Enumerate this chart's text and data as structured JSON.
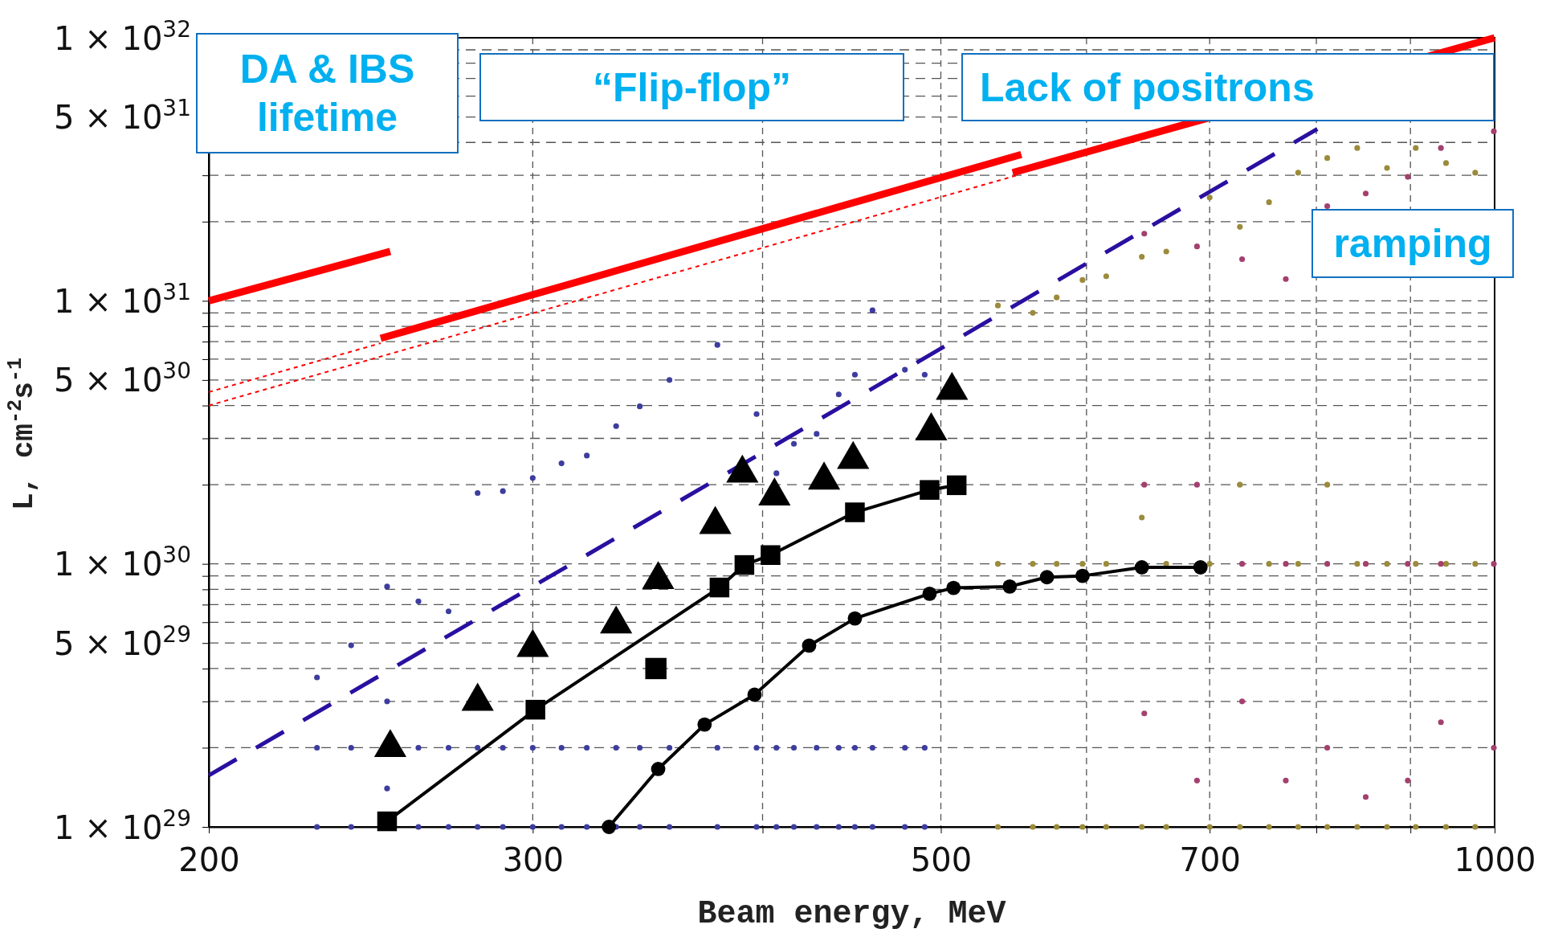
{
  "chart_data": {
    "type": "line",
    "xlabel": "Beam energy, MeV",
    "ylabel": "L, cm$^{-2}$s$^{-1}$",
    "log": "xy",
    "grid": true,
    "xlim": [
      200,
      1000
    ],
    "ylim": [
      1e+29,
      1e+32
    ],
    "xticks": [
      200,
      300,
      {
        "value": 400,
        "label": null
      },
      500,
      {
        "value": 600,
        "label": null
      },
      700,
      {
        "value": 800,
        "label": null
      },
      {
        "value": 900,
        "label": null
      },
      1000
    ],
    "yticks": [
      {
        "value": 1e+29,
        "label": "1 × 10$^{29}$"
      },
      {
        "value": 2e+29,
        "label": null
      },
      {
        "value": 3e+29,
        "label": null
      },
      {
        "value": 4e+29,
        "label": null
      },
      {
        "value": 5e+29,
        "label": "5 × 10$^{29}$"
      },
      {
        "value": 6e+29,
        "label": null
      },
      {
        "value": 7e+29,
        "label": null
      },
      {
        "value": 8e+29,
        "label": null
      },
      {
        "value": 9e+29,
        "label": null
      },
      {
        "value": 1e+30,
        "label": "1 × 10$^{30}$"
      },
      {
        "value": 2e+30,
        "label": null
      },
      {
        "value": 3e+30,
        "label": null
      },
      {
        "value": 4e+30,
        "label": null
      },
      {
        "value": 5e+30,
        "label": "5 × 10$^{30}$"
      },
      {
        "value": 6e+30,
        "label": null
      },
      {
        "value": 7e+30,
        "label": null
      },
      {
        "value": 8e+30,
        "label": null
      },
      {
        "value": 9e+30,
        "label": null
      },
      {
        "value": 1e+31,
        "label": "1 × 10$^{31}$"
      },
      {
        "value": 2e+31,
        "label": null
      },
      {
        "value": 3e+31,
        "label": null
      },
      {
        "value": 4e+31,
        "label": null
      },
      {
        "value": 5e+31,
        "label": "5 × 10$^{31}$"
      },
      {
        "value": 6e+31,
        "label": null
      },
      {
        "value": 7e+31,
        "label": null
      },
      {
        "value": 8e+31,
        "label": null
      },
      {
        "value": 9e+31,
        "label": null
      },
      {
        "value": 1e+32,
        "label": "1 × 10$^{32}$"
      }
    ],
    "annotations": [
      "DA & IBS\nlifetime",
      "“Flip-flop”",
      "Lack of positrons",
      "ramping"
    ],
    "series": [
      {
        "type": "scatter",
        "color": "#9b8b3b",
        "marker": "circle",
        "x": [
          537,
          537,
          537,
          561,
          561,
          561,
          578,
          578,
          578,
          597,
          597,
          597,
          615,
          615,
          615,
          643,
          643,
          643,
          663,
          663,
          663,
          700,
          700,
          700,
          727,
          727,
          727,
          754,
          754,
          754,
          782,
          782,
          782,
          811,
          811,
          811,
          842,
          842,
          842,
          874,
          874,
          874,
          906,
          906,
          906,
          941,
          941,
          941,
          976,
          976,
          976
        ],
        "values": [
          9.6e+30,
          1e+30,
          1e+29,
          9e+30,
          1e+30,
          1e+29,
          1.03e+31,
          1e+30,
          1e+29,
          1.2e+31,
          1e+30,
          1e+29,
          1.24e+31,
          1e+30,
          1e+29,
          1.47e+31,
          1.5e+30,
          1e+29,
          1.54e+31,
          1e+30,
          1e+29,
          2.47e+31,
          1e+30,
          1e+29,
          1.91e+31,
          2e+30,
          1e+29,
          2.37e+31,
          1e+30,
          1e+29,
          3.07e+31,
          1e+30,
          1e+29,
          3.49e+31,
          2e+30,
          1e+29,
          3.81e+31,
          1e+30,
          1e+29,
          3.2e+31,
          1e+30,
          1e+29,
          3.81e+31,
          1e+30,
          1e+29,
          3.34e+31,
          1e+30,
          1e+29,
          3.07e+31,
          1e+30,
          1e+29
        ]
      },
      {
        "type": "scatter",
        "color": "#a3406e",
        "marker": "circle",
        "x": [
          645,
          645,
          645,
          689,
          689,
          689,
          729,
          729,
          729,
          770,
          770,
          770,
          811,
          811,
          811,
          851,
          851,
          851,
          897,
          897,
          897,
          935,
          935,
          935,
          999,
          999,
          999
        ],
        "values": [
          1.8e+31,
          2e+30,
          2.7e+29,
          1.61e+31,
          2e+30,
          1.5e+29,
          1.44e+31,
          1e+30,
          3e+29,
          1.21e+31,
          1e+30,
          1.5e+29,
          2.29e+31,
          1e+30,
          2e+29,
          2.56e+31,
          1e+30,
          1.3e+29,
          2.96e+31,
          1e+30,
          1.5e+29,
          3.81e+31,
          1e+30,
          2.5e+29,
          4.41e+31,
          1e+30,
          2e+29
        ]
      },
      {
        "type": "scatter",
        "color": "#3d3d9e",
        "marker": "circle",
        "x": [
          229,
          229,
          229,
          239,
          239,
          239,
          250,
          250,
          250,
          260,
          260,
          260,
          270,
          270,
          270,
          280,
          280,
          280,
          289,
          289,
          289,
          300,
          300,
          300,
          311,
          311,
          311,
          321,
          321,
          321,
          333,
          333,
          333,
          343,
          343,
          343,
          356,
          356,
          356,
          378,
          378,
          378,
          397,
          397,
          397,
          407,
          407,
          407,
          416,
          416,
          416,
          428,
          428,
          428,
          440,
          440,
          440,
          449,
          449,
          449,
          459,
          459,
          459,
          478,
          478,
          478,
          490,
          490,
          490
        ],
        "values": [
          3.7e+29,
          2e+29,
          1e+29,
          4.9e+29,
          2e+29,
          1e+29,
          8.2e+29,
          3e+29,
          1.4e+29,
          7.2e+29,
          2e+29,
          1e+29,
          6.6e+29,
          2e+29,
          1e+29,
          1.86e+30,
          2e+29,
          1e+29,
          1.89e+30,
          2e+29,
          1e+29,
          2.12e+30,
          2e+29,
          1e+29,
          2.41e+30,
          2e+29,
          1e+29,
          2.58e+30,
          2e+29,
          1e+29,
          3.34e+30,
          2e+29,
          1e+29,
          3.97e+30,
          2e+29,
          1e+29,
          5e+30,
          2e+29,
          1e+29,
          6.8e+30,
          2e+29,
          1e+29,
          3.71e+30,
          2e+29,
          1e+29,
          2.21e+30,
          2e+29,
          1e+29,
          2.86e+30,
          2e+29,
          1e+29,
          3.12e+30,
          2e+29,
          1e+29,
          4.41e+30,
          2e+29,
          1e+29,
          5.24e+30,
          2e+29,
          1e+29,
          9.2e+30,
          2e+29,
          1e+29,
          5.47e+30,
          2e+29,
          1e+29,
          5.24e+30,
          2e+29,
          1e+29
        ]
      },
      {
        "type": "line",
        "color": "#ff0000",
        "line_style": "solid",
        "x": [
          200,
          251
        ],
        "values": [
          1e+31,
          1.54e+31
        ]
      },
      {
        "type": "line",
        "color": "#ff0000",
        "line_style": "solid",
        "x": [
          248,
          553
        ],
        "values": [
          7.2e+30,
          3.6e+31
        ]
      },
      {
        "type": "line",
        "color": "#ff0000",
        "line_style": "solid",
        "x": [
          547,
          1000
        ],
        "values": [
          3.07e+31,
          1e+32
        ]
      },
      {
        "type": "line",
        "color": "#ff0000",
        "line_style": "dotted",
        "x": [
          200,
          248
        ],
        "values": [
          4.5e+30,
          6.9e+30
        ]
      },
      {
        "type": "line",
        "color": "#ff0000",
        "line_style": "dotted",
        "x": [
          200,
          550
        ],
        "values": [
          4e+30,
          3e+31
        ]
      },
      {
        "type": "line",
        "color": "#2a0fa0",
        "line_style": "dashed",
        "x": [
          200,
          801
        ],
        "values": [
          1.57e+29,
          4.5e+31
        ]
      },
      {
        "type": "line",
        "color": "#000000",
        "line_style": "solid",
        "marker": "circle",
        "x": [
          330,
          351,
          372,
          396,
          424,
          449,
          493,
          508,
          545,
          571,
          597,
          643,
          692
        ],
        "values": [
          1e+29,
          1.66e+29,
          2.45e+29,
          3.18e+29,
          4.89e+29,
          6.2e+29,
          7.7e+29,
          8.1e+29,
          8.2e+29,
          8.9e+29,
          9e+29,
          9.7e+29,
          9.7e+29
        ]
      },
      {
        "type": "line",
        "color": "#000000",
        "line_style": "solid",
        "marker": "square",
        "x": [
          250,
          301,
          379,
          391,
          404,
          449,
          493,
          510
        ],
        "values": [
          1.05e+29,
          2.79e+29,
          8.13e+29,
          9.9e+29,
          1.08e+30,
          1.57e+30,
          1.91e+30,
          1.99e+30
        ]
      },
      {
        "type": "scatter",
        "color": "#000000",
        "marker": "square",
        "x": [
          350
        ],
        "values": [
          4e+29
        ]
      },
      {
        "type": "scatter",
        "color": "#000000",
        "marker": "triangle",
        "x": [
          251,
          280,
          300,
          333,
          351,
          377,
          390,
          406,
          432,
          448,
          494,
          507
        ],
        "values": [
          2e+29,
          3e+29,
          4.8e+29,
          5.9e+29,
          8.7e+29,
          1.41e+30,
          2.21e+30,
          1.81e+30,
          2.08e+30,
          2.49e+30,
          3.2e+30,
          4.56e+30
        ]
      }
    ]
  }
}
